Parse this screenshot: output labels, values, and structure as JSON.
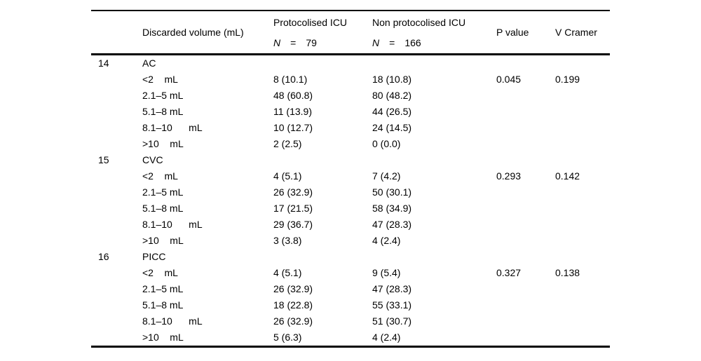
{
  "table": {
    "header": {
      "volume": "Discarded volume (mL)",
      "proto": {
        "title": "Protocolised ICU",
        "n": "N",
        "eq": "=",
        "value": "79"
      },
      "nonproto": {
        "title": "Non protocolised ICU",
        "n": "N",
        "eq": "=",
        "value": "166"
      },
      "p_value": "P value",
      "v_cramer": "V Cramer"
    },
    "groups": [
      {
        "row_number": "14",
        "category": "AC",
        "p_value": "0.045",
        "v_cramer": "0.199",
        "rows": [
          {
            "label": "<2    mL",
            "proto": "8 (10.1)",
            "nonproto": "18 (10.8)"
          },
          {
            "label": "2.1–5 mL",
            "proto": "48 (60.8)",
            "nonproto": "80 (48.2)"
          },
          {
            "label": "5.1–8 mL",
            "proto": "11 (13.9)",
            "nonproto": "44 (26.5)"
          },
          {
            "label": "8.1–10      mL",
            "proto": "10 (12.7)",
            "nonproto": "24 (14.5)"
          },
          {
            "label": ">10    mL",
            "proto": "2 (2.5)",
            "nonproto": "0 (0.0)"
          }
        ]
      },
      {
        "row_number": "15",
        "category": "CVC",
        "p_value": "0.293",
        "v_cramer": "0.142",
        "rows": [
          {
            "label": "<2    mL",
            "proto": "4 (5.1)",
            "nonproto": "7 (4.2)"
          },
          {
            "label": "2.1–5 mL",
            "proto": "26 (32.9)",
            "nonproto": "50 (30.1)"
          },
          {
            "label": "5.1–8 mL",
            "proto": "17 (21.5)",
            "nonproto": "58 (34.9)"
          },
          {
            "label": "8.1–10      mL",
            "proto": "29 (36.7)",
            "nonproto": "47 (28.3)"
          },
          {
            "label": ">10    mL",
            "proto": "3 (3.8)",
            "nonproto": "4 (2.4)"
          }
        ]
      },
      {
        "row_number": "16",
        "category": "PICC",
        "p_value": "0.327",
        "v_cramer": "0.138",
        "rows": [
          {
            "label": "<2    mL",
            "proto": "4 (5.1)",
            "nonproto": "9 (5.4)"
          },
          {
            "label": "2.1–5 mL",
            "proto": "26 (32.9)",
            "nonproto": "47 (28.3)"
          },
          {
            "label": "5.1–8 mL",
            "proto": "18 (22.8)",
            "nonproto": "55 (33.1)"
          },
          {
            "label": "8.1–10      mL",
            "proto": "26 (32.9)",
            "nonproto": "51 (30.7)"
          },
          {
            "label": ">10    mL",
            "proto": "5 (6.3)",
            "nonproto": "4 (2.4)"
          }
        ]
      }
    ]
  }
}
